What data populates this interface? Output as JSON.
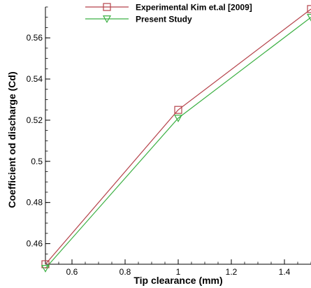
{
  "chart_data": {
    "type": "line",
    "title": "",
    "xlabel": "Tip clearance (mm)",
    "ylabel": "Coefficient od discharge (Cd)",
    "xlim": [
      0.5,
      1.5
    ],
    "ylim": [
      0.45,
      0.575
    ],
    "x_ticks": [
      0.6,
      0.8,
      1,
      1.2,
      1.4
    ],
    "x_tick_labels": [
      "0.6",
      "0.8",
      "1",
      "1.2",
      "1.4"
    ],
    "y_ticks": [
      0.46,
      0.48,
      0.5,
      0.52,
      0.54,
      0.56
    ],
    "y_tick_labels": [
      "0.46",
      "0.48",
      "0.5",
      "0.52",
      "0.54",
      "0.56"
    ],
    "grid": false,
    "legend_position": "top",
    "series": [
      {
        "name": "Experimental Kim et.al [2009]",
        "color": "#b5424a",
        "marker": "square",
        "x": [
          0.5,
          1.0,
          1.5
        ],
        "y": [
          0.45,
          0.525,
          0.574
        ]
      },
      {
        "name": "Present Study",
        "color": "#3cb043",
        "marker": "triangle-down",
        "x": [
          0.5,
          1.0,
          1.5
        ],
        "y": [
          0.448,
          0.521,
          0.57
        ]
      }
    ]
  }
}
